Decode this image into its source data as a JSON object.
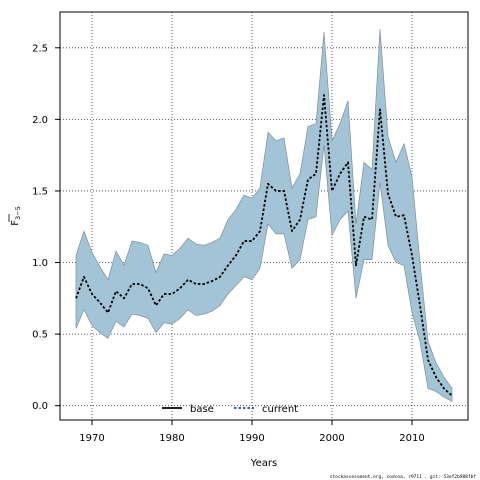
{
  "chart_data": {
    "type": "line",
    "xlabel": "Years",
    "ylabel_main": "F",
    "ylabel_sub": "3−5",
    "xlim": [
      1966,
      2017
    ],
    "ylim": [
      -0.1,
      2.75
    ],
    "x_ticks": [
      1970,
      1980,
      1990,
      2000,
      2010
    ],
    "x_tick_labels": [
      "1970",
      "1980",
      "1990",
      "2000",
      "2010"
    ],
    "y_ticks": [
      0.0,
      0.5,
      1.0,
      1.5,
      2.0,
      2.5
    ],
    "y_tick_labels": [
      "0.0",
      "0.5",
      "1.0",
      "1.5",
      "2.0",
      "2.5"
    ],
    "grid": true,
    "legend_placement": "bottom-center",
    "colors": {
      "band_fill": "#a3c4d6",
      "band_edge": "#7f8f99",
      "base_line": "#000000",
      "current_line": "#1f4e8c"
    },
    "x": [
      1968,
      1969,
      1970,
      1971,
      1972,
      1973,
      1974,
      1975,
      1976,
      1977,
      1978,
      1979,
      1980,
      1981,
      1982,
      1983,
      1984,
      1985,
      1986,
      1987,
      1988,
      1989,
      1990,
      1991,
      1992,
      1993,
      1994,
      1995,
      1996,
      1997,
      1998,
      1999,
      2000,
      2001,
      2002,
      2003,
      2004,
      2005,
      2006,
      2007,
      2008,
      2009,
      2010,
      2011,
      2012,
      2013,
      2014,
      2015
    ],
    "series": [
      {
        "name": "base",
        "style": "solid",
        "values": [
          0.75,
          0.9,
          0.78,
          0.72,
          0.65,
          0.8,
          0.75,
          0.85,
          0.85,
          0.82,
          0.7,
          0.78,
          0.78,
          0.82,
          0.88,
          0.85,
          0.85,
          0.87,
          0.9,
          0.98,
          1.05,
          1.15,
          1.15,
          1.22,
          1.55,
          1.5,
          1.5,
          1.22,
          1.3,
          1.58,
          1.62,
          2.17,
          1.5,
          1.62,
          1.7,
          0.98,
          1.32,
          1.3,
          2.07,
          1.48,
          1.32,
          1.33,
          1.05,
          0.7,
          0.32,
          0.2,
          0.12,
          0.07
        ]
      },
      {
        "name": "current",
        "style": "dotted",
        "values": [
          0.75,
          0.9,
          0.78,
          0.72,
          0.65,
          0.8,
          0.75,
          0.85,
          0.85,
          0.82,
          0.7,
          0.78,
          0.78,
          0.82,
          0.88,
          0.85,
          0.85,
          0.87,
          0.9,
          0.98,
          1.05,
          1.15,
          1.15,
          1.22,
          1.55,
          1.5,
          1.5,
          1.22,
          1.3,
          1.58,
          1.62,
          2.17,
          1.5,
          1.62,
          1.7,
          0.98,
          1.32,
          1.3,
          2.07,
          1.48,
          1.32,
          1.33,
          1.05,
          0.7,
          0.32,
          0.2,
          0.12,
          0.07
        ]
      }
    ],
    "band_upper": [
      1.05,
      1.22,
      1.07,
      0.97,
      0.88,
      1.08,
      0.98,
      1.15,
      1.14,
      1.12,
      0.93,
      1.06,
      1.05,
      1.1,
      1.17,
      1.13,
      1.12,
      1.14,
      1.17,
      1.3,
      1.37,
      1.47,
      1.45,
      1.52,
      1.91,
      1.85,
      1.87,
      1.52,
      1.62,
      1.95,
      1.97,
      2.61,
      1.85,
      1.97,
      2.13,
      1.27,
      1.7,
      1.65,
      2.63,
      1.88,
      1.7,
      1.83,
      1.6,
      1.0,
      0.45,
      0.3,
      0.2,
      0.12
    ],
    "band_lower": [
      0.54,
      0.67,
      0.56,
      0.51,
      0.47,
      0.59,
      0.55,
      0.64,
      0.63,
      0.61,
      0.51,
      0.58,
      0.57,
      0.61,
      0.67,
      0.63,
      0.64,
      0.66,
      0.7,
      0.78,
      0.84,
      0.9,
      0.88,
      0.96,
      1.27,
      1.2,
      1.2,
      0.96,
      1.02,
      1.3,
      1.32,
      1.82,
      1.19,
      1.3,
      1.36,
      0.75,
      1.02,
      1.02,
      1.56,
      1.12,
      1.0,
      0.98,
      0.65,
      0.45,
      0.12,
      0.1,
      0.06,
      0.03
    ]
  },
  "legend": {
    "base_label": "base",
    "current_label": "current"
  },
  "footer": {
    "text": "stockassessment.org, codcoa, r9711 , git: 53ef2b988fbf"
  }
}
